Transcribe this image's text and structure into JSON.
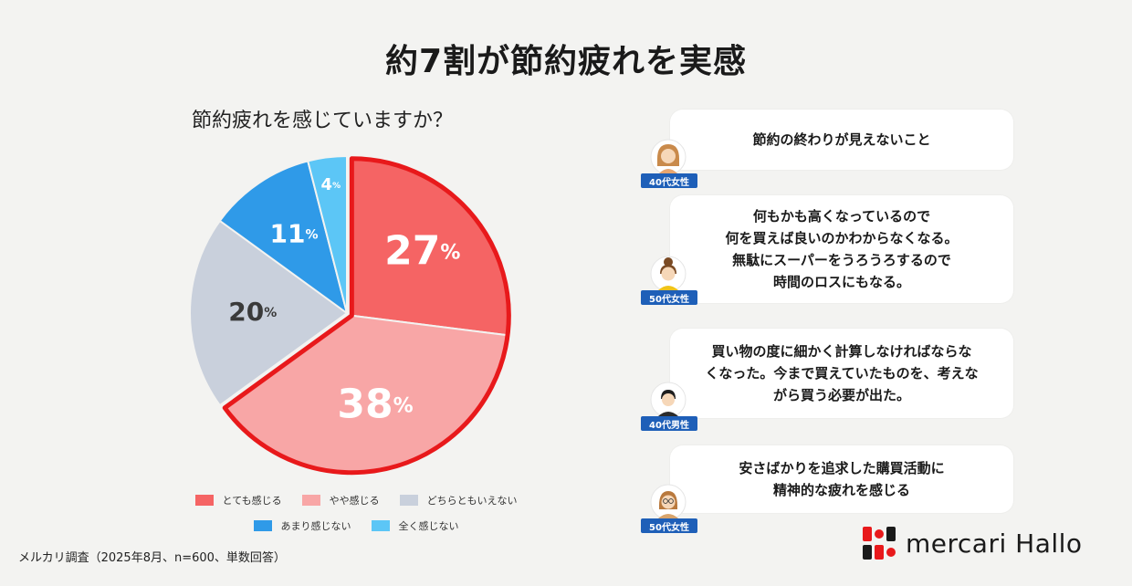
{
  "title": "約7割が節約疲れを実感",
  "chart_data": {
    "type": "pie",
    "title": "節約疲れを感じていますか？",
    "slices": [
      {
        "label": "とても感じる",
        "value": 27,
        "display": "27",
        "color": "#f56464",
        "label_color": "#ffffff",
        "highlighted": true
      },
      {
        "label": "やや感じる",
        "value": 38,
        "display": "38",
        "color": "#f8a6a6",
        "label_color": "#ffffff",
        "highlighted": true
      },
      {
        "label": "どちらともいえない",
        "value": 20,
        "display": "20",
        "color": "#c9d0dc",
        "label_color": "#3a3a3a",
        "highlighted": false
      },
      {
        "label": "あまり感じない",
        "value": 11,
        "display": "11",
        "color": "#2f9ae8",
        "label_color": "#ffffff",
        "highlighted": false
      },
      {
        "label": "全く感じない",
        "value": 4,
        "display": "4",
        "color": "#5cc6f6",
        "label_color": "#ffffff",
        "highlighted": false
      }
    ],
    "unit": "%",
    "highlight_color": "#e8191b",
    "legend_position": "bottom"
  },
  "footnote": "メルカリ調査（2025年8月、n=600、単数回答）",
  "quotes": [
    {
      "text": "節約の終わりが見えないこと",
      "person": "40代女性",
      "icon": "woman-avatar-icon"
    },
    {
      "text": "何もかも高くなっているので\n何を買えば良いのかわからなくなる。\n無駄にスーパーをうろうろするので\n時間のロスにもなる。",
      "person": "50代女性",
      "icon": "woman-bun-avatar-icon"
    },
    {
      "text": "買い物の度に細かく計算しなければならな\nくなった。今まで買えていたものを、考えな\nがら買う必要が出た。",
      "person": "40代男性",
      "icon": "man-avatar-icon"
    },
    {
      "text": "安さばかりを追求した購買活動に\n精神的な疲れを感じる",
      "person": "50代女性",
      "icon": "woman-glasses-avatar-icon"
    }
  ],
  "brand": {
    "name": "mercari Hallo",
    "logo_icon": "mercari-hallo-logo-icon",
    "logo_colors": [
      "#e8191b",
      "#1a1a1a"
    ]
  }
}
